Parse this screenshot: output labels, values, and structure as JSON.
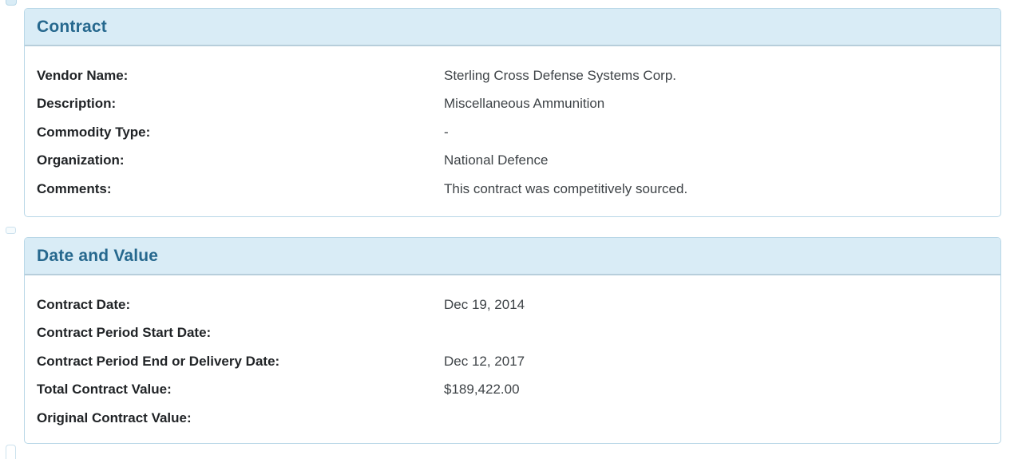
{
  "colors": {
    "page_bg": "#ffffff",
    "panel_border": "#b8d7e7",
    "header_bg": "#d9ecf6",
    "header_divider": "#b7cedb",
    "header_text": "#26688e",
    "label_text": "#212427",
    "value_text": "#3e4347"
  },
  "panels": [
    {
      "title": "Contract",
      "rows": [
        {
          "label": "Vendor Name:",
          "value": "Sterling Cross Defense Systems Corp."
        },
        {
          "label": "Description:",
          "value": "Miscellaneous Ammunition"
        },
        {
          "label": "Commodity Type:",
          "value": "-"
        },
        {
          "label": "Organization:",
          "value": "National Defence"
        },
        {
          "label": "Comments:",
          "value": "This contract was competitively sourced."
        }
      ]
    },
    {
      "title": "Date and Value",
      "rows": [
        {
          "label": "Contract Date:",
          "value": "Dec 19, 2014"
        },
        {
          "label": "Contract Period Start Date:",
          "value": ""
        },
        {
          "label": "Contract Period End or Delivery Date:",
          "value": "Dec 12, 2017"
        },
        {
          "label": "Total Contract Value:",
          "value": "$189,422.00"
        },
        {
          "label": "Original Contract Value:",
          "value": ""
        }
      ]
    }
  ]
}
